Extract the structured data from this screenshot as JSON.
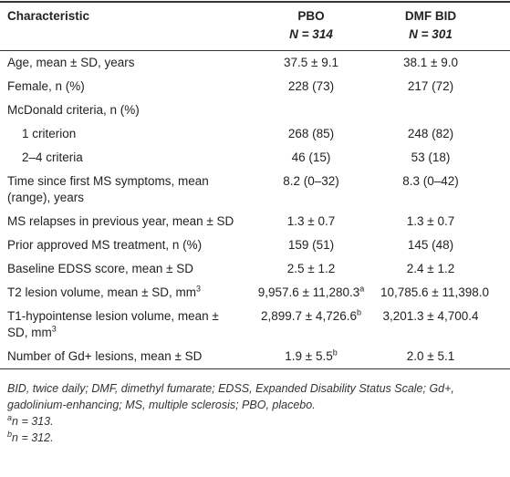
{
  "table": {
    "header": [
      {
        "text": "Characteristic"
      },
      {
        "text": "PBO",
        "n_symbol": "N",
        "n_value": "= 314"
      },
      {
        "text": "DMF BID",
        "n_symbol": "N",
        "n_value": "= 301"
      }
    ],
    "rows": [
      [
        "Age, mean ± SD, years",
        "37.5 ± 9.1",
        "38.1 ± 9.0"
      ],
      [
        "Female, n (%)",
        "228 (73)",
        "217 (72)"
      ],
      [
        "McDonald criteria, n (%)"
      ],
      [
        "1 criterion",
        "268 (85)",
        "248 (82)"
      ],
      [
        "2–4 criteria",
        "46 (15)",
        "53 (18)"
      ],
      [
        "Time since first MS symptoms, mean (range), years",
        "8.2 (0–32)",
        "8.3 (0–42)"
      ],
      [
        "MS relapses in previous year, mean ± SD",
        "1.3 ± 0.7",
        "1.3 ± 0.7"
      ],
      [
        "Prior approved MS treatment, n (%)",
        "159 (51)",
        "145 (48)"
      ],
      [
        "Baseline EDSS score, mean ± SD",
        "2.5 ± 1.2",
        "2.4 ± 1.2"
      ],
      [
        {
          "text": "T2 lesion volume, mean ± SD, mm",
          "sup": "3"
        },
        {
          "text": "9,957.6 ± 11,280.3",
          "sup": "a"
        },
        "10,785.6 ± 11,398.0"
      ],
      [
        {
          "text": "T1-hypointense lesion volume, mean ± SD, mm",
          "sup": "3"
        },
        {
          "text": "2,899.7 ± 4,726.6",
          "sup": "b"
        },
        "3,201.3 ± 4,700.4"
      ],
      [
        "Number of Gd+ lesions, mean ± SD",
        {
          "text": "1.9 ± 5.5",
          "sup": "b"
        },
        "2.0 ± 5.1"
      ]
    ],
    "abbreviations": "BID, twice daily; DMF, dimethyl fumarate; EDSS, Expanded Disability Status Scale; Gd+, gadolinium-enhancing; MS, multiple sclerosis; PBO, placebo.",
    "notes": [
      {
        "mark": "a",
        "text": "n = 313."
      },
      {
        "mark": "b",
        "text": "n = 312."
      }
    ]
  }
}
